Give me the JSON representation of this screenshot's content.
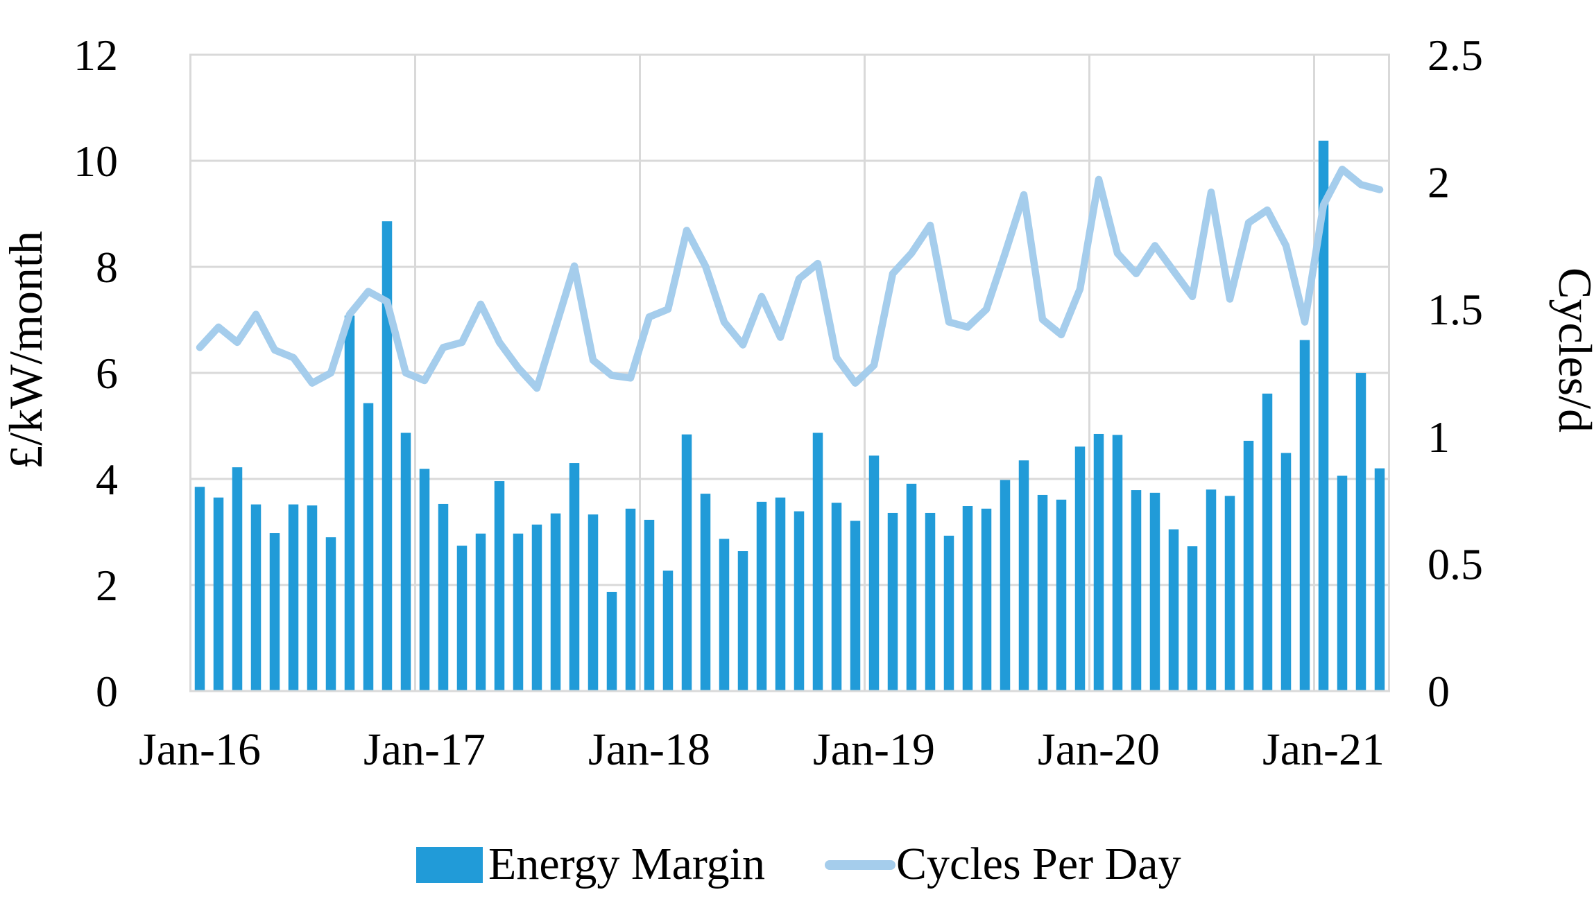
{
  "chart_data": {
    "type": "combo-bar-line",
    "months": [
      "Jan-16",
      "Feb-16",
      "Mar-16",
      "Apr-16",
      "May-16",
      "Jun-16",
      "Jul-16",
      "Aug-16",
      "Sep-16",
      "Oct-16",
      "Nov-16",
      "Dec-16",
      "Jan-17",
      "Feb-17",
      "Mar-17",
      "Apr-17",
      "May-17",
      "Jun-17",
      "Jul-17",
      "Aug-17",
      "Sep-17",
      "Oct-17",
      "Nov-17",
      "Dec-17",
      "Jan-18",
      "Feb-18",
      "Mar-18",
      "Apr-18",
      "May-18",
      "Jun-18",
      "Jul-18",
      "Aug-18",
      "Sep-18",
      "Oct-18",
      "Nov-18",
      "Dec-18",
      "Jan-19",
      "Feb-19",
      "Mar-19",
      "Apr-19",
      "May-19",
      "Jun-19",
      "Jul-19",
      "Aug-19",
      "Sep-19",
      "Oct-19",
      "Nov-19",
      "Dec-19",
      "Jan-20",
      "Feb-20",
      "Mar-20",
      "Apr-20",
      "May-20",
      "Jun-20",
      "Jul-20",
      "Aug-20",
      "Sep-20",
      "Oct-20",
      "Nov-20",
      "Dec-20",
      "Jan-21",
      "Feb-21",
      "Mar-21",
      "Apr-21"
    ],
    "series": [
      {
        "name": "Energy Margin",
        "type": "bar",
        "axis": "left",
        "color": "#219BD8",
        "values": [
          3.85,
          3.65,
          4.22,
          3.52,
          2.98,
          3.52,
          3.5,
          2.9,
          7.08,
          5.43,
          8.86,
          4.87,
          4.19,
          3.53,
          2.74,
          2.97,
          3.96,
          2.97,
          3.14,
          3.35,
          4.3,
          3.33,
          1.87,
          3.44,
          3.23,
          2.27,
          4.84,
          3.72,
          2.87,
          2.64,
          3.57,
          3.65,
          3.39,
          4.87,
          3.55,
          3.21,
          4.44,
          3.36,
          3.91,
          3.36,
          2.93,
          3.49,
          3.44,
          3.98,
          4.35,
          3.7,
          3.61,
          4.61,
          4.85,
          4.83,
          3.79,
          3.74,
          3.05,
          2.73,
          3.8,
          3.68,
          4.72,
          5.61,
          4.49,
          6.62,
          10.38,
          4.06,
          6.0,
          4.2
        ]
      },
      {
        "name": "Cycles Per Day",
        "type": "line",
        "axis": "right",
        "color": "#A5CDEC",
        "values": [
          1.35,
          1.43,
          1.37,
          1.48,
          1.34,
          1.31,
          1.21,
          1.25,
          1.48,
          1.57,
          1.53,
          1.25,
          1.22,
          1.35,
          1.37,
          1.52,
          1.37,
          1.27,
          1.19,
          1.43,
          1.67,
          1.3,
          1.24,
          1.23,
          1.47,
          1.5,
          1.81,
          1.67,
          1.45,
          1.36,
          1.55,
          1.39,
          1.62,
          1.68,
          1.31,
          1.21,
          1.28,
          1.64,
          1.72,
          1.83,
          1.45,
          1.43,
          1.5,
          1.72,
          1.95,
          1.46,
          1.4,
          1.58,
          2.01,
          1.72,
          1.64,
          1.75,
          1.65,
          1.55,
          1.96,
          1.54,
          1.84,
          1.89,
          1.75,
          1.45,
          1.91,
          2.05,
          1.99,
          1.97
        ]
      }
    ],
    "left_axis": {
      "label": "£/kW/month",
      "min": 0,
      "max": 12,
      "step": 2,
      "tick_labels": [
        "0",
        "2",
        "4",
        "6",
        "8",
        "10",
        "12"
      ]
    },
    "right_axis": {
      "label": "Cycles/d",
      "min": 0,
      "max": 2.5,
      "step": 0.5,
      "tick_labels": [
        "0",
        "0.5",
        "1",
        "1.5",
        "2",
        "2.5"
      ]
    },
    "x_axis": {
      "tick_indices": [
        0,
        12,
        24,
        36,
        48,
        60
      ],
      "tick_labels": [
        "Jan-16",
        "Jan-17",
        "Jan-18",
        "Jan-19",
        "Jan-20",
        "Jan-21"
      ]
    },
    "grid": {
      "color": "#D9D9D9",
      "horizontal": true,
      "vertical_on_year_boundaries": true
    },
    "legend": {
      "position": "bottom-center",
      "entries": [
        {
          "label": "Energy Margin",
          "swatch": "bar"
        },
        {
          "label": "Cycles Per Day",
          "swatch": "line"
        }
      ]
    }
  }
}
